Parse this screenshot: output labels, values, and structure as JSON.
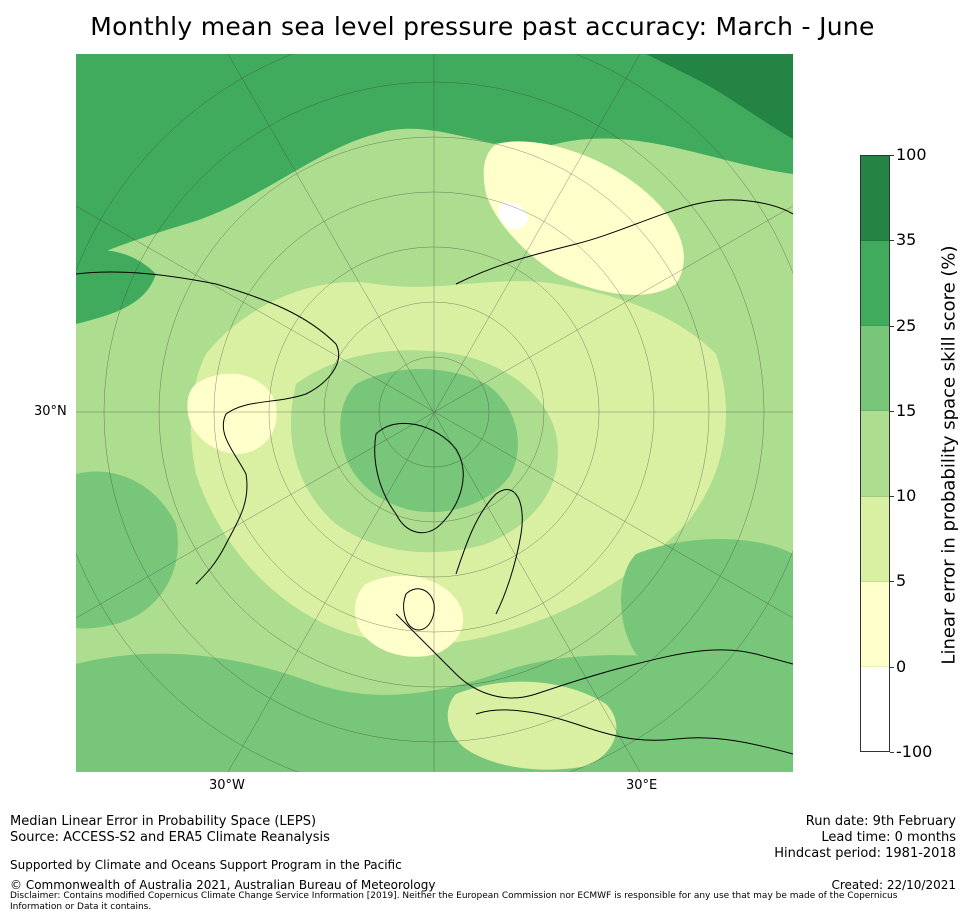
{
  "title": "Monthly mean sea level pressure past accuracy: March - June",
  "map": {
    "lat_label": "30°N",
    "lon_labels": [
      "30°W",
      "30°E"
    ],
    "colors": {
      "water_none": "#ffffff",
      "c0_5": "#ffffcc",
      "c5_10": "#d9f0a3",
      "c10_15": "#addd8e",
      "c15_25": "#78c679",
      "c25_35": "#41ab5d",
      "c35_100": "#238443",
      "coast": "#000000",
      "grid": "#3a3a3a"
    }
  },
  "colorbar": {
    "label": "Linear error in probability space skill score (%)",
    "ticks": [
      "100",
      "35",
      "25",
      "15",
      "10",
      "5",
      "0",
      "-100"
    ],
    "segment_colors": [
      "#238443",
      "#41ab5d",
      "#78c679",
      "#addd8e",
      "#d9f0a3",
      "#ffffcc",
      "#ffffff"
    ]
  },
  "footer": {
    "left_line1": "Median Linear Error in Probability Space (LEPS)",
    "left_line2": "Source: ACCESS-S2 and ERA5 Climate Reanalysis",
    "supported": "Supported by Climate and Oceans Support Program in the Pacific",
    "copyright": "© Commonwealth of Australia 2021, Australian Bureau of Meteorology",
    "disclaimer": "Disclaimer: Contains modified Copernicus Climate Change Service Information [2019]. Neither the European Commission nor ECMWF is responsible for any use that may be made of the Copernicus Information or Data it contains.",
    "run_date": "Run date: 9th February",
    "lead_time": "Lead time: 0 months",
    "hindcast": "Hindcast period: 1981-2018",
    "created": "Created: 22/10/2021"
  }
}
